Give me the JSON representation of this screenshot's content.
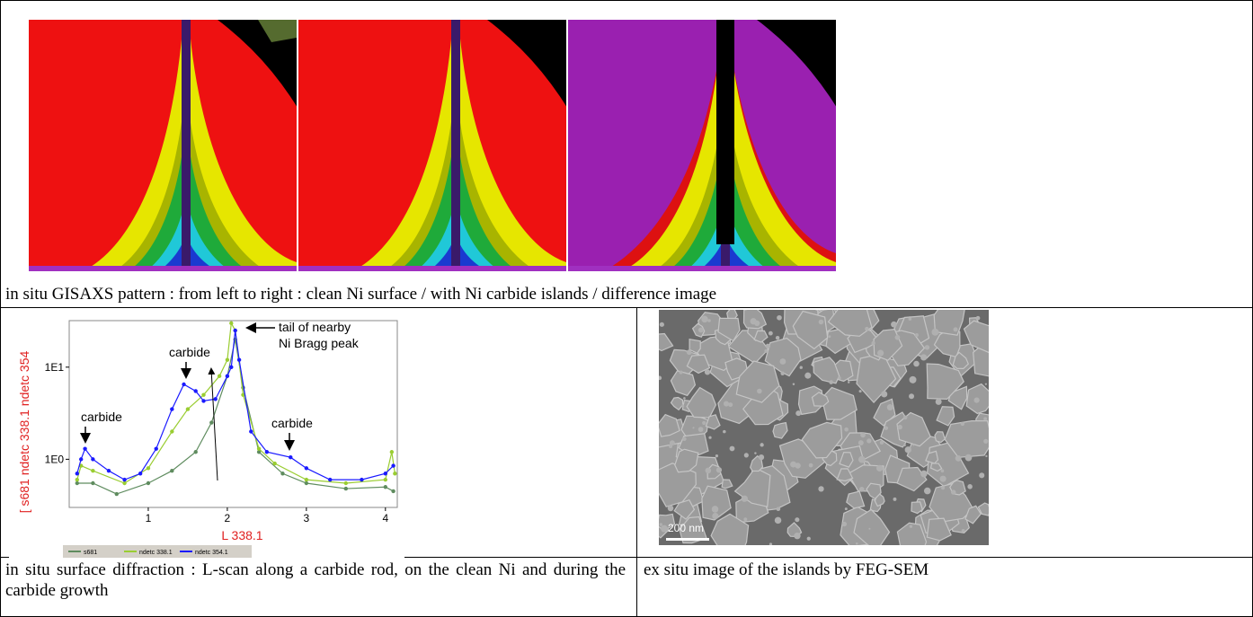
{
  "row1": {
    "caption": "in situ GISAXS pattern : from left to right : clean Ni surface / with Ni carbide islands / difference image"
  },
  "chart_data": {
    "type": "line",
    "log_y": true,
    "x_label": "L 338.1",
    "y_label": "[   s681   ndetc 338.1   ndetc 354",
    "xlim": [
      0,
      4.15
    ],
    "ylim": [
      0.3,
      32
    ],
    "xticks": [
      1,
      2,
      3,
      4
    ],
    "yticks": [
      {
        "value": 1,
        "label": "1E0"
      },
      {
        "value": 10,
        "label": "1E1"
      }
    ],
    "series": [
      {
        "name": "s681",
        "color": "#5f8c5f",
        "x": [
          0.1,
          0.3,
          0.6,
          1.0,
          1.3,
          1.6,
          1.8,
          2.0,
          2.1,
          2.2,
          2.4,
          2.7,
          3.0,
          3.5,
          4.0,
          4.1
        ],
        "values": [
          0.55,
          0.55,
          0.42,
          0.55,
          0.75,
          1.2,
          2.5,
          8,
          20,
          6,
          1.2,
          0.7,
          0.55,
          0.48,
          0.5,
          0.45
        ]
      },
      {
        "name": "ndetc 338.1",
        "color": "#9acd32",
        "x": [
          0.1,
          0.15,
          0.3,
          0.7,
          1.0,
          1.3,
          1.5,
          1.7,
          1.9,
          2.0,
          2.05,
          2.1,
          2.2,
          2.4,
          2.6,
          3.0,
          3.5,
          4.0,
          4.08,
          4.12
        ],
        "values": [
          0.6,
          0.85,
          0.75,
          0.55,
          0.8,
          2,
          3.5,
          5,
          8,
          12,
          30,
          25,
          5,
          1.3,
          0.9,
          0.6,
          0.55,
          0.6,
          1.2,
          0.7
        ]
      },
      {
        "name": "ndetc 354.1",
        "color": "#1a1aff",
        "x": [
          0.1,
          0.15,
          0.2,
          0.3,
          0.5,
          0.7,
          0.9,
          1.1,
          1.3,
          1.45,
          1.6,
          1.7,
          1.85,
          2.0,
          2.05,
          2.1,
          2.15,
          2.3,
          2.5,
          2.8,
          3.0,
          3.3,
          3.7,
          4.0,
          4.1
        ],
        "values": [
          0.7,
          1.0,
          1.3,
          1.0,
          0.75,
          0.6,
          0.7,
          1.3,
          3.5,
          6.5,
          5.5,
          4.3,
          4.5,
          8,
          10,
          25,
          12,
          2,
          1.2,
          1.05,
          0.8,
          0.6,
          0.6,
          0.7,
          0.85
        ]
      }
    ],
    "annotations": [
      "carbide",
      "carbide",
      "carbide",
      "tail of nearby",
      "Ni Bragg peak"
    ]
  },
  "sem": {
    "scale_bar": "200 nm"
  },
  "row3": {
    "left": "in situ surface diffraction : L-scan along a carbide rod, on the clean Ni and during the carbide growth",
    "right": "ex situ image of the islands by FEG-SEM"
  }
}
